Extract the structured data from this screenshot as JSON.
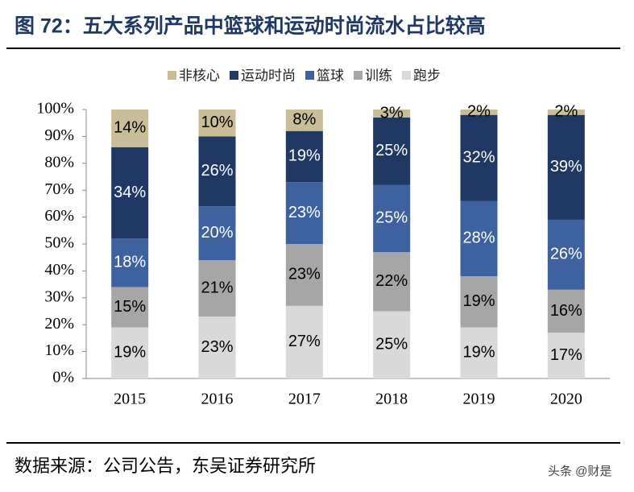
{
  "chart_data": {
    "type": "stacked_bar",
    "title": "图 72：五大系列产品中篮球和运动时尚流水占比较高",
    "source": "数据来源：公司公告，东吴证券研究所",
    "watermark": "头条 @财是",
    "categories": [
      "2015",
      "2016",
      "2017",
      "2018",
      "2019",
      "2020"
    ],
    "series": [
      {
        "name": "非核心",
        "color": "#c8bd97",
        "values": [
          14,
          10,
          8,
          3,
          2,
          2
        ],
        "value_labels": [
          "14%",
          "10%",
          "8%",
          "3%",
          "2%",
          "2%"
        ]
      },
      {
        "name": "运动时尚",
        "color": "#1f3864",
        "values": [
          34,
          26,
          19,
          25,
          32,
          39
        ],
        "value_labels": [
          "34%",
          "26%",
          "19%",
          "25%",
          "32%",
          "39%"
        ]
      },
      {
        "name": "篮球",
        "color": "#3e62a0",
        "values": [
          18,
          20,
          23,
          25,
          28,
          26
        ],
        "value_labels": [
          "18%",
          "20%",
          "23%",
          "25%",
          "28%",
          "26%"
        ]
      },
      {
        "name": "训练",
        "color": "#a6a6a6",
        "values": [
          15,
          21,
          23,
          22,
          19,
          16
        ],
        "value_labels": [
          "15%",
          "21%",
          "23%",
          "22%",
          "19%",
          "16%"
        ]
      },
      {
        "name": "跑步",
        "color": "#d9d9d9",
        "values": [
          19,
          23,
          27,
          25,
          19,
          17
        ],
        "value_labels": [
          "19%",
          "23%",
          "27%",
          "25%",
          "19%",
          "17%"
        ]
      }
    ],
    "ylim": [
      0,
      100
    ],
    "yticks": [
      {
        "value": 0,
        "label": "0%"
      },
      {
        "value": 10,
        "label": "10%"
      },
      {
        "value": 20,
        "label": "20%"
      },
      {
        "value": 30,
        "label": "30%"
      },
      {
        "value": 40,
        "label": "40%"
      },
      {
        "value": 50,
        "label": "50%"
      },
      {
        "value": 60,
        "label": "60%"
      },
      {
        "value": 70,
        "label": "70%"
      },
      {
        "value": 80,
        "label": "80%"
      },
      {
        "value": 90,
        "label": "90%"
      },
      {
        "value": 100,
        "label": "100%"
      }
    ]
  }
}
